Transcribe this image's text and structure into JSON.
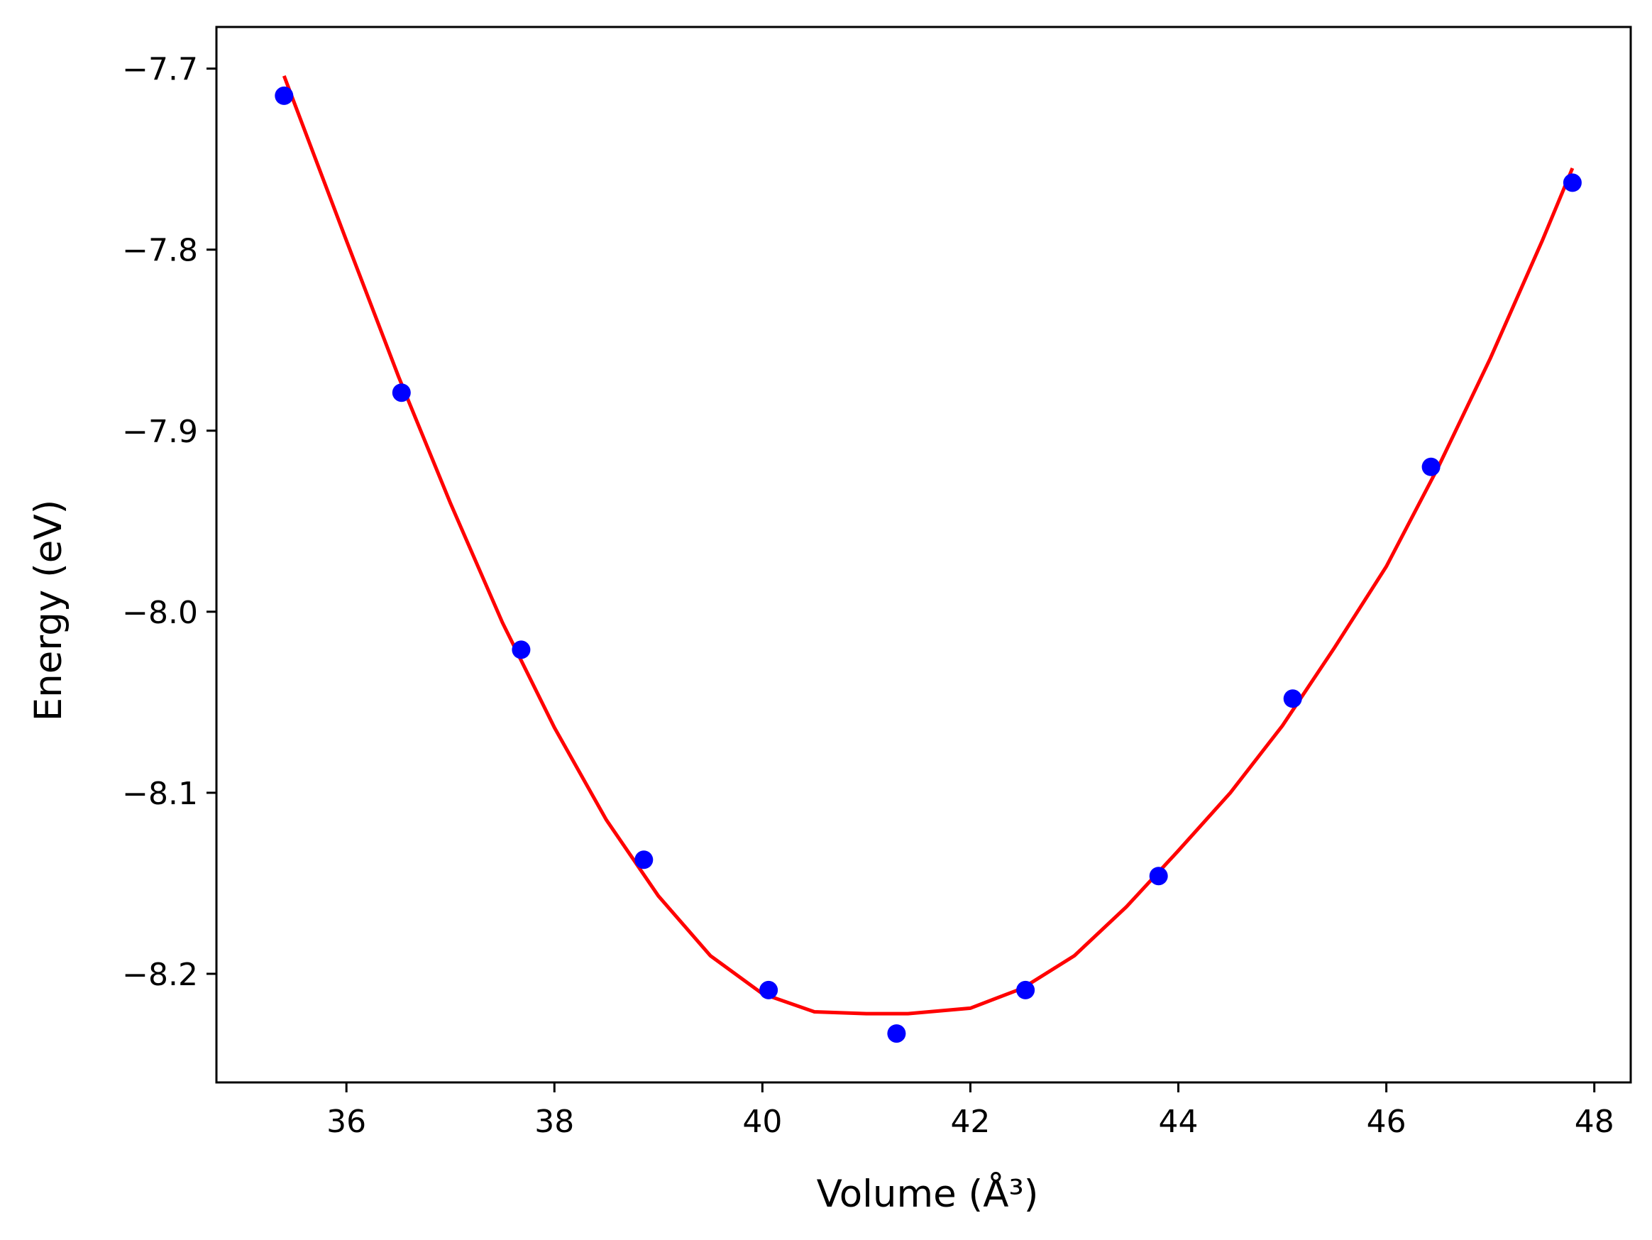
{
  "chart_data": {
    "type": "scatter",
    "title": "",
    "xlabel": "Volume (Å³)",
    "ylabel": "Energy (eV)",
    "xlim": [
      34.75,
      48.35
    ],
    "ylim": [
      -8.26,
      -7.677
    ],
    "x_ticks": [
      36,
      38,
      40,
      42,
      44,
      46,
      48
    ],
    "x_tick_labels": [
      "36",
      "38",
      "40",
      "42",
      "44",
      "46",
      "48"
    ],
    "y_ticks": [
      -7.7,
      -7.8,
      -7.9,
      -8.0,
      -8.1,
      -8.2
    ],
    "y_tick_labels": [
      "−7.7",
      "−7.8",
      "−7.9",
      "−8.0",
      "−8.1",
      "−8.2"
    ],
    "grid": false,
    "legend": "none",
    "series": [
      {
        "kind": "points",
        "color": "#0000ff",
        "x": [
          35.4,
          36.53,
          37.68,
          38.86,
          40.06,
          41.29,
          42.53,
          43.81,
          45.1,
          46.43,
          47.79
        ],
        "y": [
          -7.715,
          -7.879,
          -8.021,
          -8.137,
          -8.209,
          -8.233,
          -8.209,
          -8.146,
          -8.048,
          -7.92,
          -7.763
        ]
      },
      {
        "kind": "fit-curve",
        "color": "#ff0000",
        "x": [
          35.4,
          36.0,
          36.5,
          37.0,
          37.5,
          38.0,
          38.5,
          39.0,
          39.5,
          40.0,
          40.5,
          41.0,
          41.4,
          42.0,
          42.5,
          43.0,
          43.5,
          44.0,
          44.5,
          45.0,
          45.5,
          46.0,
          46.5,
          47.0,
          47.5,
          47.79
        ],
        "y": [
          -7.704,
          -7.795,
          -7.87,
          -7.94,
          -8.006,
          -8.064,
          -8.115,
          -8.157,
          -8.19,
          -8.211,
          -8.221,
          -8.222,
          -8.222,
          -8.219,
          -8.208,
          -8.19,
          -8.163,
          -8.132,
          -8.1,
          -8.063,
          -8.02,
          -7.975,
          -7.92,
          -7.86,
          -7.795,
          -7.755
        ]
      }
    ]
  }
}
